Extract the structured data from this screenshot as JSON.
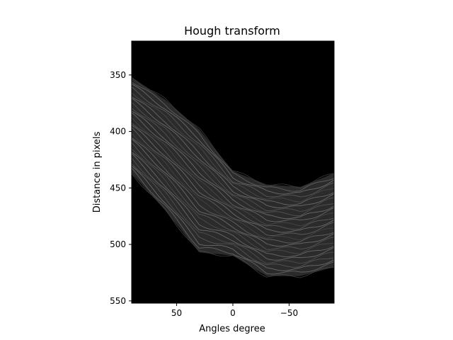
{
  "chart_data": {
    "type": "heatmap",
    "title": "Hough transform",
    "xlabel": "Angles degree",
    "ylabel": "Distance in pixels",
    "colormap": "gray",
    "xlim": [
      90,
      -90
    ],
    "ylim": [
      552,
      320
    ],
    "x_ticks": [
      50,
      0,
      -50
    ],
    "x_tick_labels": [
      "50",
      "0",
      "−50"
    ],
    "y_ticks": [
      350,
      400,
      450,
      500,
      550
    ],
    "y_tick_labels": [
      "350",
      "400",
      "450",
      "500",
      "550"
    ],
    "band": {
      "angle": [
        90,
        60,
        30,
        0,
        -30,
        -60,
        -90
      ],
      "upper_edge": [
        352,
        372,
        398,
        435,
        447,
        449,
        437
      ],
      "lower_edge": [
        437,
        470,
        507,
        510,
        528,
        528,
        520
      ]
    }
  }
}
